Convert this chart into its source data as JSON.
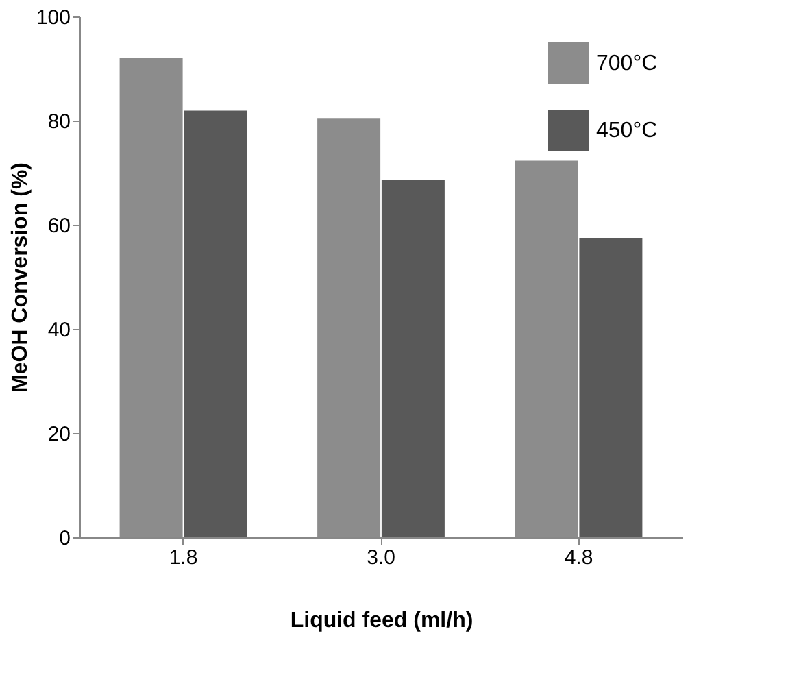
{
  "chart_data": {
    "type": "bar",
    "xlabel": "Liquid feed (ml/h)",
    "ylabel": "MeOH Conversion (%)",
    "categories": [
      "1.8",
      "3.0",
      "4.8"
    ],
    "series": [
      {
        "name": "700°C",
        "color": "#8c8c8c",
        "values": [
          92.1,
          80.5,
          72.3
        ]
      },
      {
        "name": "450°C",
        "color": "#595959",
        "values": [
          81.9,
          68.6,
          57.5
        ]
      }
    ],
    "ylim": [
      0,
      100
    ],
    "yticks": [
      0,
      20,
      40,
      60,
      80,
      100
    ],
    "grid": false,
    "legend": "top right"
  }
}
